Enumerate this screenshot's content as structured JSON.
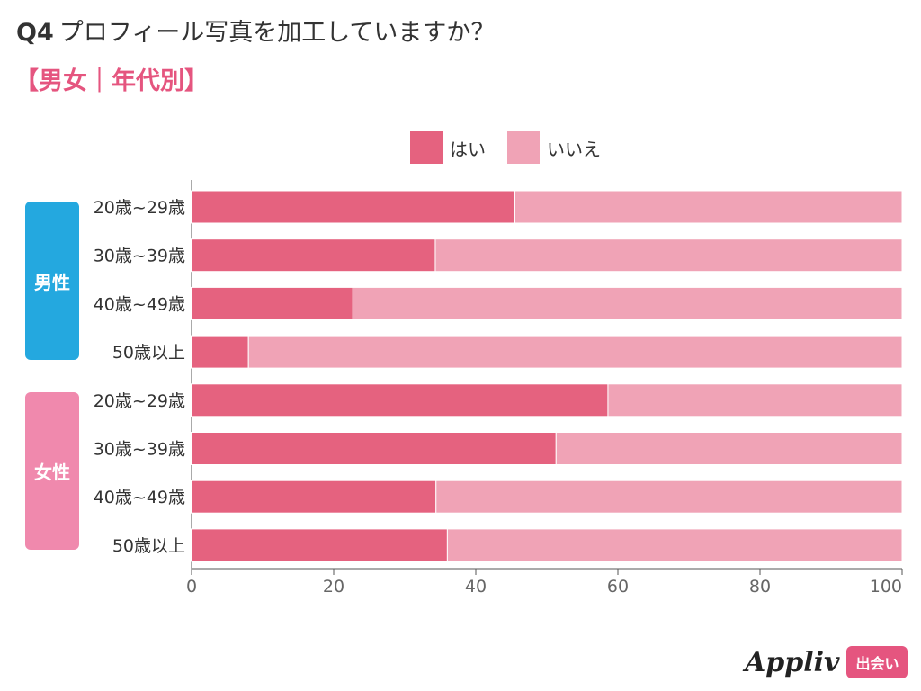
{
  "header": {
    "q_number": "Q4",
    "question": "プロフィール写真を加工していますか？",
    "subtitle": "【男女｜年代別】"
  },
  "groups": {
    "male": "男性",
    "female": "女性"
  },
  "colors": {
    "yes": "#e5627f",
    "no": "#f0a3b6",
    "male": "#24a8df",
    "female": "#f089ad",
    "accent": "#e5557f"
  },
  "brand": {
    "name": "Appliv",
    "badge": "出会い"
  },
  "chart_data": {
    "type": "bar",
    "orientation": "horizontal",
    "stacked": true,
    "title": "プロフィール写真を加工していますか？",
    "xlabel": "",
    "ylabel": "",
    "xlim": [
      0,
      100
    ],
    "xticks": [
      0,
      20,
      40,
      60,
      80,
      100
    ],
    "legend_position": "top-center",
    "group_labels": [
      "男性",
      "男性",
      "男性",
      "男性",
      "女性",
      "女性",
      "女性",
      "女性"
    ],
    "categories": [
      "20歳~29歳",
      "30歳~39歳",
      "40歳~49歳",
      "50歳以上",
      "20歳~29歳",
      "30歳~39歳",
      "40歳~49歳",
      "50歳以上"
    ],
    "series": [
      {
        "name": "はい",
        "values": [
          45.5,
          34.3,
          22.7,
          8.0,
          58.6,
          51.3,
          34.4,
          36.0
        ]
      },
      {
        "name": "いいえ",
        "values": [
          54.5,
          65.7,
          77.3,
          92.0,
          41.4,
          48.7,
          65.6,
          64.0
        ]
      }
    ]
  }
}
